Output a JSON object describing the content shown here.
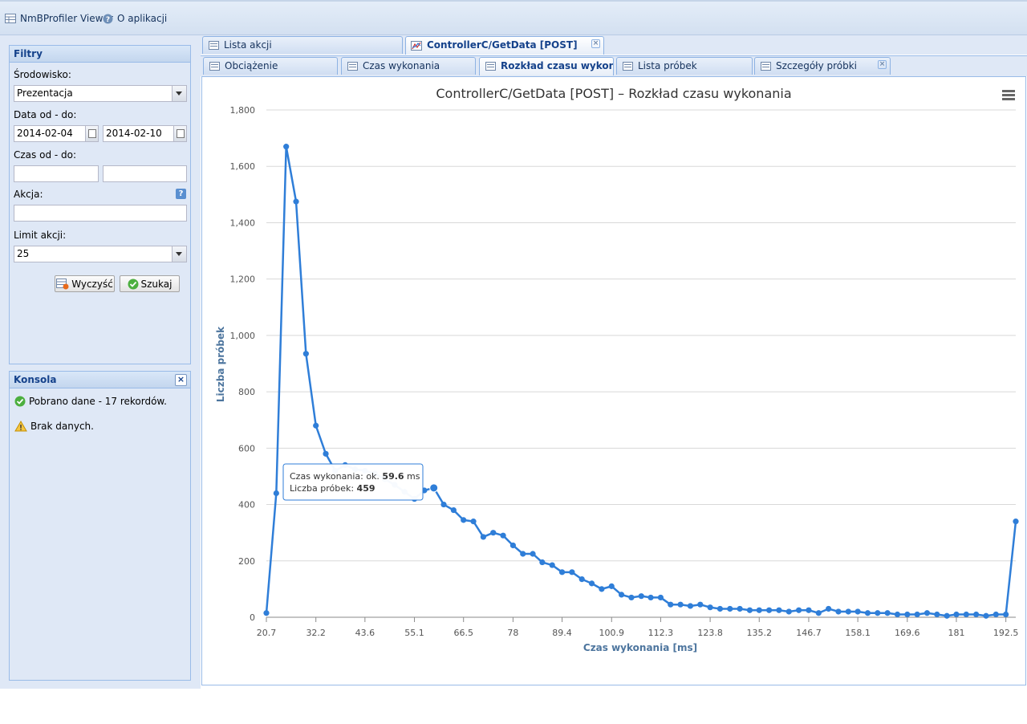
{
  "menu": {
    "items": [
      {
        "label": "NmBProfiler Viewer",
        "icon": "table-icon"
      },
      {
        "label": "O aplikacji",
        "icon": "help-circle-icon"
      }
    ]
  },
  "filters": {
    "title": "Filtry",
    "environment_label": "Środowisko:",
    "environment_value": "Prezentacja",
    "date_label": "Data od - do:",
    "date_from": "2014-02-04",
    "date_to": "2014-02-10",
    "time_label": "Czas od - do:",
    "time_from": "",
    "time_to": "",
    "action_label": "Akcja:",
    "action_value": "",
    "limit_label": "Limit akcji:",
    "limit_value": "25",
    "clear_label": "Wyczyść",
    "search_label": "Szukaj"
  },
  "console": {
    "title": "Konsola",
    "messages": [
      {
        "text": "Pobrano dane - 17 rekordów.",
        "icon": "success-check-icon"
      },
      {
        "text": "Brak danych.",
        "icon": "warning-triangle-icon"
      }
    ]
  },
  "tabs_main": [
    {
      "label": "Lista akcji",
      "active": false,
      "closable": false
    },
    {
      "label": "ControllerC/GetData [POST]",
      "active": true,
      "closable": true
    }
  ],
  "tabs_sub": [
    {
      "label": "Obciążenie",
      "active": false,
      "closable": false
    },
    {
      "label": "Czas wykonania",
      "active": false,
      "closable": false
    },
    {
      "label": "Rozkład czasu wykonan",
      "active": true,
      "closable": false
    },
    {
      "label": "Lista próbek",
      "active": false,
      "closable": false
    },
    {
      "label": "Szczegóły próbki",
      "active": false,
      "closable": true
    }
  ],
  "chart_data": {
    "type": "line",
    "title": "ControllerC/GetData [POST] – Rozkład czasu wykonania",
    "xlabel": "Czas wykonania [ms]",
    "ylabel": "Liczba próbek",
    "x_ticks": [
      "20.7",
      "32.2",
      "43.6",
      "55.1",
      "66.5",
      "78",
      "89.4",
      "100.9",
      "112.3",
      "123.8",
      "135.2",
      "146.7",
      "158.1",
      "169.6",
      "181",
      "192.5"
    ],
    "y_ticks": [
      "0",
      "200",
      "400",
      "600",
      "800",
      "1,000",
      "1,200",
      "1,400",
      "1,600",
      "1,800"
    ],
    "ylim": [
      0,
      1800
    ],
    "xlim": [
      20.7,
      194.8
    ],
    "grid": true,
    "color": "#2f7ed8",
    "x": [
      20.7,
      23.0,
      25.3,
      27.6,
      29.9,
      32.2,
      34.5,
      36.7,
      39.0,
      41.3,
      43.6,
      45.9,
      48.2,
      50.5,
      52.8,
      55.1,
      57.4,
      59.6,
      61.9,
      64.2,
      66.5,
      68.8,
      71.1,
      73.4,
      75.7,
      78.0,
      80.3,
      82.6,
      84.8,
      87.1,
      89.4,
      91.7,
      94.0,
      96.3,
      98.6,
      100.9,
      103.2,
      105.5,
      107.8,
      110.0,
      112.3,
      114.6,
      116.9,
      119.2,
      121.5,
      123.8,
      126.1,
      128.4,
      130.7,
      133.0,
      135.2,
      137.5,
      139.8,
      142.1,
      144.4,
      146.7,
      149.0,
      151.3,
      153.6,
      155.9,
      158.1,
      160.4,
      162.7,
      165.0,
      167.3,
      169.6,
      171.9,
      174.2,
      176.5,
      178.8,
      181.0,
      183.3,
      185.6,
      187.9,
      190.2,
      192.5,
      194.8
    ],
    "y": [
      15,
      440,
      1670,
      1475,
      935,
      680,
      580,
      520,
      540,
      525,
      520,
      510,
      490,
      470,
      445,
      420,
      450,
      459,
      400,
      380,
      345,
      340,
      285,
      300,
      290,
      255,
      225,
      225,
      195,
      185,
      160,
      160,
      135,
      120,
      100,
      110,
      80,
      70,
      75,
      70,
      70,
      45,
      45,
      40,
      45,
      35,
      30,
      30,
      30,
      25,
      25,
      25,
      25,
      20,
      25,
      25,
      15,
      30,
      20,
      20,
      20,
      15,
      15,
      15,
      10,
      10,
      10,
      15,
      10,
      5,
      10,
      10,
      10,
      5,
      10,
      10,
      340
    ],
    "tooltip": {
      "line1_prefix": "Czas wykonania: ok. ",
      "line1_value": "59.6",
      "line1_unit": " ms",
      "line2_prefix": "Liczba próbek: ",
      "line2_value": "459",
      "highlight_x": 59.6,
      "highlight_y": 459
    }
  }
}
